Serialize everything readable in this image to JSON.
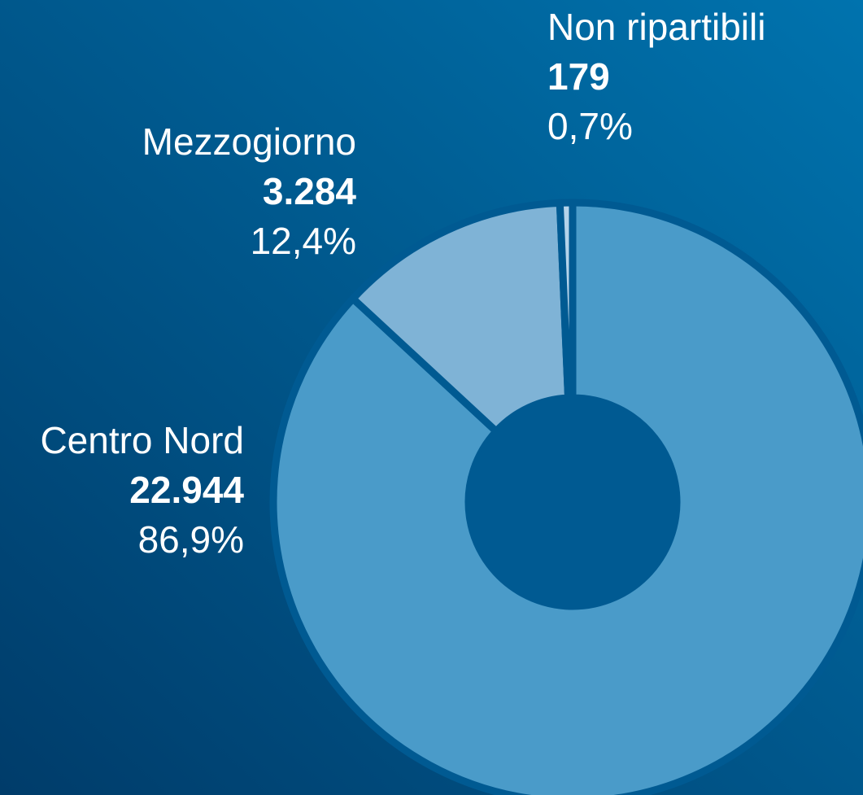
{
  "chart_data": {
    "type": "pie",
    "categories": [
      "Centro Nord",
      "Mezzogiorno",
      "Non ripartibili"
    ],
    "values": [
      22944,
      3284,
      179
    ],
    "value_labels": [
      "22.944",
      "3.284",
      "179"
    ],
    "percent_labels": [
      "86,9%",
      "12,4%",
      "0,7%"
    ],
    "colors": [
      "#4a9bc9",
      "#7fb3d6",
      "#b4d3ea"
    ]
  }
}
